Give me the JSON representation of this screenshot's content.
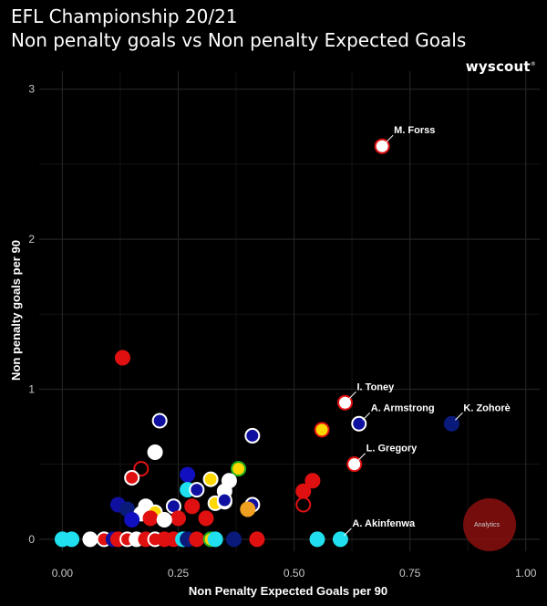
{
  "header": {
    "title": "EFL Championship 20/21",
    "subtitle": "Non penalty goals vs Non penalty Expected Goals",
    "logo_text": "wyscout",
    "badge_text": "Analytics"
  },
  "chart_data": {
    "type": "scatter",
    "title": "EFL Championship 20/21",
    "subtitle": "Non penalty goals vs Non penalty Expected Goals",
    "xlabel": "Non Penalty Expected Goals per 90",
    "ylabel": "Non penalty goals per 90",
    "xlim": [
      -0.05,
      1.03
    ],
    "ylim": [
      -0.08,
      3.12
    ],
    "x_ticks": [
      0.0,
      0.25,
      0.5,
      0.75,
      1.0
    ],
    "x_tick_labels": [
      "0.00",
      "0.25",
      "0.50",
      "0.75",
      "1.00"
    ],
    "y_ticks": [
      0,
      1,
      2,
      3
    ],
    "y_tick_labels": [
      "0",
      "1",
      "2",
      "3"
    ],
    "grid": true,
    "annotations": [
      {
        "label": "M. Forss",
        "x": 0.69,
        "y": 2.62
      },
      {
        "label": "I. Toney",
        "x": 0.61,
        "y": 0.91
      },
      {
        "label": "A. Armstrong",
        "x": 0.64,
        "y": 0.77
      },
      {
        "label": "K. Zohorè",
        "x": 0.84,
        "y": 0.77
      },
      {
        "label": "L. Gregory",
        "x": 0.63,
        "y": 0.5
      },
      {
        "label": "A. Akinfenwa",
        "x": 0.6,
        "y": 0.0
      }
    ],
    "points": [
      {
        "x": 0.69,
        "y": 2.62,
        "fill": "#ffffff",
        "stroke": "#e01010"
      },
      {
        "x": 0.13,
        "y": 1.21,
        "fill": "#e01010",
        "stroke": "#e01010"
      },
      {
        "x": 0.61,
        "y": 0.91,
        "fill": "#ffffff",
        "stroke": "#e01010"
      },
      {
        "x": 0.64,
        "y": 0.77,
        "fill": "#1010a0",
        "stroke": "#ffffff"
      },
      {
        "x": 0.84,
        "y": 0.77,
        "fill": "#0a1a7a",
        "stroke": "#0a1a7a"
      },
      {
        "x": 0.56,
        "y": 0.73,
        "fill": "#ffd700",
        "stroke": "#e01010"
      },
      {
        "x": 0.21,
        "y": 0.79,
        "fill": "#1010a0",
        "stroke": "#ffffff"
      },
      {
        "x": 0.41,
        "y": 0.69,
        "fill": "#1010a0",
        "stroke": "#ffffff"
      },
      {
        "x": 0.63,
        "y": 0.5,
        "fill": "#ffffff",
        "stroke": "#e01010"
      },
      {
        "x": 0.2,
        "y": 0.58,
        "fill": "#ffffff",
        "stroke": "#ffffff"
      },
      {
        "x": 0.17,
        "y": 0.47,
        "fill": "#000000",
        "stroke": "#e01010"
      },
      {
        "x": 0.15,
        "y": 0.41,
        "fill": "#e01010",
        "stroke": "#ffffff"
      },
      {
        "x": 0.27,
        "y": 0.43,
        "fill": "#1010c0",
        "stroke": "#1010c0"
      },
      {
        "x": 0.38,
        "y": 0.47,
        "fill": "#ffd700",
        "stroke": "#20b020"
      },
      {
        "x": 0.32,
        "y": 0.4,
        "fill": "#ffd700",
        "stroke": "#ffffff"
      },
      {
        "x": 0.36,
        "y": 0.39,
        "fill": "#ffffff",
        "stroke": "#ffffff"
      },
      {
        "x": 0.27,
        "y": 0.33,
        "fill": "#20e0f0",
        "stroke": "#20e0f0"
      },
      {
        "x": 0.29,
        "y": 0.33,
        "fill": "#1010a0",
        "stroke": "#ffffff"
      },
      {
        "x": 0.35,
        "y": 0.32,
        "fill": "#ffffff",
        "stroke": "#ffffff"
      },
      {
        "x": 0.54,
        "y": 0.39,
        "fill": "#e01010",
        "stroke": "#e01010"
      },
      {
        "x": 0.52,
        "y": 0.32,
        "fill": "#e01010",
        "stroke": "#e01010"
      },
      {
        "x": 0.52,
        "y": 0.23,
        "fill": "#000000",
        "stroke": "#e01010"
      },
      {
        "x": 0.12,
        "y": 0.23,
        "fill": "#1010a0",
        "stroke": "#1010a0"
      },
      {
        "x": 0.14,
        "y": 0.2,
        "fill": "#0a1a7a",
        "stroke": "#0a1a7a"
      },
      {
        "x": 0.18,
        "y": 0.22,
        "fill": "#ffffff",
        "stroke": "#ffffff"
      },
      {
        "x": 0.2,
        "y": 0.18,
        "fill": "#ffd700",
        "stroke": "#ffffff"
      },
      {
        "x": 0.17,
        "y": 0.17,
        "fill": "#ffffff",
        "stroke": "#ffffff"
      },
      {
        "x": 0.24,
        "y": 0.22,
        "fill": "#1010a0",
        "stroke": "#ffffff"
      },
      {
        "x": 0.28,
        "y": 0.22,
        "fill": "#e01010",
        "stroke": "#e01010"
      },
      {
        "x": 0.33,
        "y": 0.24,
        "fill": "#ffd700",
        "stroke": "#ffffff"
      },
      {
        "x": 0.35,
        "y": 0.25,
        "fill": "#ffffff",
        "stroke": "#ffffff"
      },
      {
        "x": 0.35,
        "y": 0.26,
        "fill": "#1010a0",
        "stroke": "#ffffff"
      },
      {
        "x": 0.41,
        "y": 0.23,
        "fill": "#1010a0",
        "stroke": "#ffffff"
      },
      {
        "x": 0.4,
        "y": 0.2,
        "fill": "#f0a020",
        "stroke": "#f0a020"
      },
      {
        "x": 0.15,
        "y": 0.13,
        "fill": "#1010c0",
        "stroke": "#1010c0"
      },
      {
        "x": 0.25,
        "y": 0.14,
        "fill": "#e01010",
        "stroke": "#e01010"
      },
      {
        "x": 0.19,
        "y": 0.14,
        "fill": "#e01010",
        "stroke": "#e01010"
      },
      {
        "x": 0.22,
        "y": 0.13,
        "fill": "#ffffff",
        "stroke": "#ffffff"
      },
      {
        "x": 0.31,
        "y": 0.14,
        "fill": "#e01010",
        "stroke": "#e01010"
      },
      {
        "x": 0.0,
        "y": 0.0,
        "fill": "#20e0f0",
        "stroke": "#20e0f0"
      },
      {
        "x": 0.02,
        "y": 0.0,
        "fill": "#20e0f0",
        "stroke": "#20e0f0"
      },
      {
        "x": 0.06,
        "y": 0.0,
        "fill": "#ffffff",
        "stroke": "#ffffff"
      },
      {
        "x": 0.09,
        "y": 0.0,
        "fill": "#e01010",
        "stroke": "#ffffff"
      },
      {
        "x": 0.11,
        "y": 0.0,
        "fill": "#1010a0",
        "stroke": "#1010a0"
      },
      {
        "x": 0.12,
        "y": 0.0,
        "fill": "#e01010",
        "stroke": "#e01010"
      },
      {
        "x": 0.14,
        "y": 0.0,
        "fill": "#e01010",
        "stroke": "#ffffff"
      },
      {
        "x": 0.16,
        "y": 0.0,
        "fill": "#ffffff",
        "stroke": "#ffffff"
      },
      {
        "x": 0.18,
        "y": 0.0,
        "fill": "#e01010",
        "stroke": "#e01010"
      },
      {
        "x": 0.2,
        "y": 0.0,
        "fill": "#e01010",
        "stroke": "#ffffff"
      },
      {
        "x": 0.22,
        "y": 0.0,
        "fill": "#e01010",
        "stroke": "#e01010"
      },
      {
        "x": 0.24,
        "y": 0.0,
        "fill": "#e01010",
        "stroke": "#e01010"
      },
      {
        "x": 0.26,
        "y": 0.0,
        "fill": "#20e0f0",
        "stroke": "#20e0f0"
      },
      {
        "x": 0.27,
        "y": 0.0,
        "fill": "#0a1a7a",
        "stroke": "#0a1a7a"
      },
      {
        "x": 0.29,
        "y": 0.0,
        "fill": "#e01010",
        "stroke": "#e01010"
      },
      {
        "x": 0.32,
        "y": 0.0,
        "fill": "#ffd700",
        "stroke": "#20b020"
      },
      {
        "x": 0.33,
        "y": 0.0,
        "fill": "#20e0f0",
        "stroke": "#20e0f0"
      },
      {
        "x": 0.37,
        "y": 0.0,
        "fill": "#0a1a7a",
        "stroke": "#0a1a7a"
      },
      {
        "x": 0.42,
        "y": 0.0,
        "fill": "#e01010",
        "stroke": "#e01010"
      },
      {
        "x": 0.55,
        "y": 0.0,
        "fill": "#20e0f0",
        "stroke": "#20e0f0"
      },
      {
        "x": 0.6,
        "y": 0.0,
        "fill": "#20e0f0",
        "stroke": "#20e0f0"
      }
    ]
  }
}
